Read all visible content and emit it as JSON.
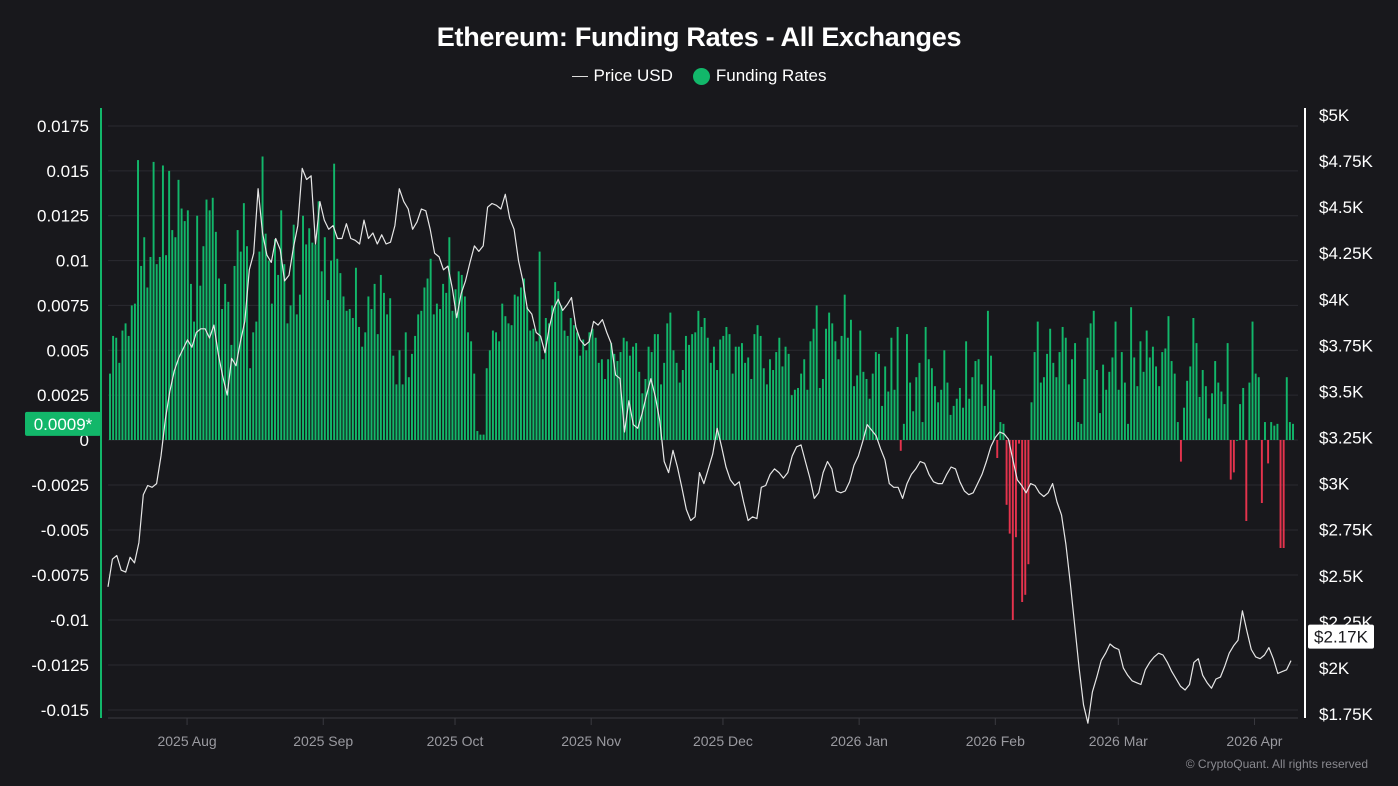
{
  "header": {
    "title": "Ethereum: Funding Rates - All Exchanges"
  },
  "legend": {
    "items": [
      {
        "label": "Price USD",
        "type": "line",
        "color": "#e6e6e6"
      },
      {
        "label": "Funding Rates",
        "type": "dot",
        "color": "#12b76a"
      }
    ]
  },
  "footer": {
    "copyright": "© CryptoQuant. All rights reserved"
  },
  "chart_data": {
    "type": "bar+line",
    "title": "Ethereum: Funding Rates - All Exchanges",
    "colors": {
      "positive": "#12b76a",
      "negative": "#e5334d",
      "price": "#e6e6e6",
      "background": "#18181c",
      "grid": "#2a2a30",
      "left_axis": "#12b76a",
      "right_axis": "#ffffff"
    },
    "left_axis": {
      "ylim": [
        -0.015,
        0.0175
      ],
      "ticks": [
        0.0175,
        0.015,
        0.0125,
        0.01,
        0.0075,
        0.005,
        0.0025,
        0,
        -0.0025,
        -0.005,
        -0.0075,
        -0.01,
        -0.0125,
        -0.015
      ],
      "tick_labels": [
        "0.0175",
        "0.015",
        "0.0125",
        "0.01",
        "0.0075",
        "0.005",
        "0.0025",
        "0",
        "-0.0025",
        "-0.005",
        "-0.0075",
        "-0.01",
        "-0.0125",
        "-0.015"
      ],
      "current_value": 0.0009,
      "current_label": "0.0009*"
    },
    "right_axis": {
      "ylim": [
        1750,
        5000
      ],
      "ticks": [
        5000,
        4750,
        4500,
        4250,
        4000,
        3750,
        3500,
        3250,
        3000,
        2750,
        2500,
        2250,
        2000,
        1750
      ],
      "tick_labels": [
        "$5K",
        "$4.75K",
        "$4.5K",
        "$4.25K",
        "$4K",
        "$3.75K",
        "$3.5K",
        "$3.25K",
        "$3K",
        "$2.75K",
        "$2.5K",
        "$2.25K",
        "$2K",
        "$1.75K"
      ],
      "current_value": 2170,
      "current_label": "$2.17K"
    },
    "x_axis": {
      "tick_labels": [
        "2025 Aug",
        "2025 Sep",
        "2025 Oct",
        "2025 Nov",
        "2025 Dec",
        "2026 Jan",
        "2026 Feb",
        "2026 Mar",
        "2026 Apr"
      ],
      "tick_positions_days": [
        18,
        49,
        79,
        110,
        140,
        171,
        202,
        230,
        261
      ],
      "total_days": 270
    },
    "grid": true,
    "legend_position": "top-center",
    "series": [
      {
        "name": "Funding Rates",
        "values": [
          0.0037,
          0.0058,
          0.0057,
          0.0043,
          0.0061,
          0.0065,
          0.0058,
          0.0075,
          0.0076,
          0.0156,
          0.0097,
          0.0113,
          0.0085,
          0.0102,
          0.0155,
          0.0098,
          0.0102,
          0.0153,
          0.0103,
          0.015,
          0.0117,
          0.0113,
          0.0145,
          0.0129,
          0.0122,
          0.0128,
          0.0087,
          0.0066,
          0.0125,
          0.0086,
          0.0108,
          0.0134,
          0.0128,
          0.0135,
          0.0116,
          0.009,
          0.0073,
          0.0087,
          0.0077,
          0.0053,
          0.0097,
          0.0117,
          0.0105,
          0.0132,
          0.0108,
          0.004,
          0.006,
          0.0066,
          0.0105,
          0.0158,
          0.0115,
          0.01,
          0.0076,
          0.0112,
          0.0092,
          0.0128,
          0.0098,
          0.0065,
          0.0075,
          0.012,
          0.007,
          0.0081,
          0.0125,
          0.0109,
          0.0118,
          0.011,
          0.0109,
          0.0133,
          0.0094,
          0.0113,
          0.0078,
          0.01,
          0.0154,
          0.0101,
          0.0093,
          0.008,
          0.0072,
          0.0073,
          0.0068,
          0.0096,
          0.0063,
          0.0052,
          0.006,
          0.008,
          0.0073,
          0.0087,
          0.0059,
          0.0092,
          0.0082,
          0.007,
          0.0079,
          0.0047,
          0.0031,
          0.005,
          0.0031,
          0.006,
          0.0035,
          0.0048,
          0.0058,
          0.007,
          0.0072,
          0.0085,
          0.009,
          0.0101,
          0.007,
          0.0076,
          0.0073,
          0.0087,
          0.0082,
          0.0113,
          0.0072,
          0.0084,
          0.0094,
          0.0092,
          0.008,
          0.006,
          0.0055,
          0.0037,
          0.0005,
          0.0003,
          0.0003,
          0.004,
          0.005,
          0.0061,
          0.006,
          0.0055,
          0.0076,
          0.0069,
          0.0065,
          0.0064,
          0.0081,
          0.008,
          0.0085,
          0.009,
          0.0074,
          0.0061,
          0.0062,
          0.0055,
          0.0105,
          0.0045,
          0.0068,
          0.0065,
          0.0075,
          0.0088,
          0.0083,
          0.0075,
          0.0061,
          0.0058,
          0.0068,
          0.0064,
          0.006,
          0.0047,
          0.0056,
          0.005,
          0.006,
          0.0062,
          0.0057,
          0.0043,
          0.0045,
          0.0034,
          0.0045,
          0.0054,
          0.0048,
          0.0044,
          0.0049,
          0.0057,
          0.0055,
          0.0047,
          0.0052,
          0.0054,
          0.0038,
          0.0026,
          0.0034,
          0.0052,
          0.0049,
          0.0059,
          0.0059,
          0.0031,
          0.0043,
          0.0065,
          0.0071,
          0.005,
          0.0043,
          0.0032,
          0.0039,
          0.0058,
          0.0053,
          0.0059,
          0.006,
          0.0072,
          0.0063,
          0.0068,
          0.0057,
          0.0043,
          0.0052,
          0.0039,
          0.0056,
          0.0058,
          0.0063,
          0.0059,
          0.0037,
          0.0052,
          0.0052,
          0.0054,
          0.0043,
          0.0046,
          0.0034,
          0.0059,
          0.0064,
          0.0058,
          0.004,
          0.0031,
          0.0045,
          0.0039,
          0.0049,
          0.0057,
          0.0041,
          0.0052,
          0.0048,
          0.0025,
          0.0028,
          0.0029,
          0.0037,
          0.0045,
          0.0028,
          0.0055,
          0.0062,
          0.0075,
          0.0029,
          0.0034,
          0.0062,
          0.0071,
          0.0065,
          0.0055,
          0.0045,
          0.0058,
          0.0081,
          0.0057,
          0.0067,
          0.003,
          0.0036,
          0.0061,
          0.0038,
          0.0034,
          0.0023,
          0.0037,
          0.0049,
          0.0048,
          0.0019,
          0.0041,
          0.0027,
          0.0057,
          0.0028,
          0.0063,
          -0.0006,
          0.0009,
          0.0059,
          0.0032,
          0.0016,
          0.0035,
          0.0043,
          0.001,
          0.0063,
          0.0045,
          0.004,
          0.003,
          0.0021,
          0.0028,
          0.005,
          0.0032,
          0.0014,
          0.0019,
          0.0023,
          0.0029,
          0.0018,
          0.0055,
          0.0023,
          0.0035,
          0.0044,
          0.0045,
          0.0031,
          0.0019,
          0.0072,
          0.0047,
          0.0028,
          -0.001,
          0.001,
          0.0009,
          -0.0036,
          -0.0052,
          -0.01,
          -0.0054,
          -0.0002,
          -0.009,
          -0.0086,
          -0.0069,
          0.0021,
          0.0049,
          0.0066,
          0.0032,
          0.0035,
          0.0048,
          0.0062,
          0.0043,
          0.0035,
          0.0049,
          0.0063,
          0.0057,
          0.0031,
          0.0045,
          0.0054,
          0.001,
          0.0009,
          0.0034,
          0.0057,
          0.0065,
          0.0072,
          0.0039,
          0.0015,
          0.0042,
          0.0028,
          0.0038,
          0.0046,
          0.0066,
          0.0028,
          0.0049,
          0.0032,
          0.0009,
          0.0074,
          0.0046,
          0.003,
          0.0055,
          0.0038,
          0.0061,
          0.0046,
          0.0052,
          0.0041,
          0.003,
          0.0049,
          0.0051,
          0.0069,
          0.0044,
          0.0037,
          0.001,
          -0.0012,
          0.0018,
          0.0033,
          0.0041,
          0.0068,
          0.0054,
          0.0024,
          0.0039,
          0.003,
          0.0012,
          0.0026,
          0.0044,
          0.0032,
          0.0027,
          0.002,
          0.0054,
          -0.0022,
          -0.0018,
          0.0,
          0.002,
          0.0029,
          -0.0045,
          0.0032,
          0.0066,
          0.0037,
          0.0035,
          -0.0035,
          0.001,
          -0.0013,
          0.001,
          0.0008,
          0.0009,
          -0.006,
          -0.006,
          0.0035,
          0.001,
          0.0009
        ],
        "approximate": true
      },
      {
        "name": "Price USD",
        "points_days": [
          0,
          1,
          2,
          3,
          4,
          5,
          6,
          7,
          8,
          9,
          10,
          11,
          12,
          13,
          14,
          15,
          16,
          17,
          18,
          19,
          20,
          21,
          22,
          23,
          24,
          25,
          26,
          27,
          28,
          29,
          30,
          31,
          32,
          33,
          34,
          35,
          36,
          37,
          38,
          39,
          40,
          41,
          42,
          43,
          44,
          45,
          46,
          47,
          48,
          49,
          50,
          51,
          52,
          53,
          54,
          55,
          56,
          57,
          58,
          59,
          60,
          61,
          62,
          63,
          64,
          65,
          66,
          67,
          68,
          69,
          70,
          71,
          72,
          73,
          74,
          75,
          76,
          77,
          78,
          79,
          80,
          81,
          82,
          83,
          84,
          85,
          86,
          87,
          88,
          89,
          90,
          91,
          92,
          93,
          94,
          95,
          96,
          97,
          98,
          99,
          100,
          101,
          102,
          103,
          104,
          105,
          106,
          107,
          108,
          109,
          110,
          111,
          112,
          113,
          114,
          115,
          116,
          117,
          118,
          119,
          120,
          121,
          122,
          123,
          124,
          125,
          126,
          127,
          128,
          129,
          130,
          131,
          132,
          133,
          134,
          135,
          136,
          137,
          138,
          139,
          140,
          141,
          142,
          143,
          144,
          145,
          146,
          147,
          148,
          149,
          150,
          151,
          152,
          153,
          154,
          155,
          156,
          157,
          158,
          159,
          160,
          161,
          162,
          163,
          164,
          165,
          166,
          167,
          168,
          169,
          170,
          171,
          172,
          173,
          174,
          175,
          176,
          177,
          178,
          179,
          180,
          181,
          182,
          183,
          184,
          185,
          186,
          187,
          188,
          189,
          190,
          191,
          192,
          193,
          194,
          195,
          196,
          197,
          198,
          199,
          200,
          201,
          202,
          203,
          204,
          205,
          206,
          207,
          208,
          209,
          210,
          211,
          212,
          213,
          214,
          215,
          216,
          217,
          218,
          219,
          220,
          221,
          222,
          223,
          224,
          225,
          226,
          227,
          228,
          229,
          230,
          231,
          232,
          233,
          234,
          235,
          236,
          237,
          238,
          239,
          240,
          241,
          242,
          243,
          244,
          245,
          246,
          247,
          248,
          249,
          250,
          251,
          252,
          253,
          254,
          255,
          256,
          257,
          258,
          259,
          260,
          261,
          262,
          263,
          264,
          265,
          266,
          267,
          268
        ],
        "values": [
          2440,
          2590,
          2610,
          2530,
          2520,
          2600,
          2570,
          2680,
          2940,
          2990,
          2980,
          3000,
          3150,
          3350,
          3500,
          3610,
          3680,
          3730,
          3780,
          3740,
          3820,
          3840,
          3840,
          3790,
          3860,
          3700,
          3580,
          3480,
          3680,
          3640,
          3770,
          3880,
          4160,
          4250,
          4600,
          4360,
          4240,
          4200,
          4330,
          4270,
          4100,
          4130,
          4280,
          4400,
          4710,
          4650,
          4670,
          4300,
          4530,
          4430,
          4380,
          4400,
          4330,
          4330,
          4410,
          4330,
          4320,
          4300,
          4430,
          4330,
          4360,
          4300,
          4350,
          4300,
          4310,
          4400,
          4600,
          4530,
          4490,
          4380,
          4420,
          4490,
          4480,
          4380,
          4250,
          4230,
          4160,
          4180,
          4060,
          3900,
          4030,
          4100,
          4200,
          4290,
          4260,
          4290,
          4500,
          4520,
          4510,
          4490,
          4570,
          4440,
          4380,
          4210,
          4100,
          3950,
          3920,
          3820,
          3800,
          3710,
          3850,
          3950,
          4000,
          3940,
          3970,
          4010,
          3850,
          3780,
          3750,
          3770,
          3880,
          3860,
          3890,
          3820,
          3760,
          3590,
          3570,
          3280,
          3450,
          3320,
          3300,
          3380,
          3480,
          3570,
          3470,
          3340,
          3120,
          3060,
          3180,
          3090,
          2980,
          2860,
          2800,
          2820,
          3060,
          3000,
          3080,
          3160,
          3300,
          3200,
          3090,
          3020,
          2990,
          3010,
          2900,
          2800,
          2820,
          2810,
          2980,
          2990,
          3050,
          3080,
          3060,
          3030,
          3060,
          3150,
          3200,
          3210,
          3120,
          3030,
          2920,
          2950,
          3060,
          3120,
          3080,
          2960,
          2950,
          2960,
          3010,
          3100,
          3150,
          3230,
          3320,
          3290,
          3260,
          3190,
          3130,
          3000,
          2980,
          2980,
          2920,
          3000,
          3050,
          3080,
          3120,
          3110,
          3050,
          3010,
          3000,
          3000,
          3050,
          3090,
          3080,
          3010,
          2960,
          2940,
          2950,
          3000,
          3050,
          3120,
          3200,
          3250,
          3280,
          3270,
          3240,
          3130,
          3020,
          2990,
          2950,
          3000,
          2990,
          2950,
          2930,
          2950,
          3000,
          2900,
          2830,
          2670,
          2460,
          2230,
          2000,
          1800,
          1700,
          1870,
          1950,
          2040,
          2080,
          2130,
          2110,
          2100,
          2000,
          1960,
          1930,
          1920,
          1910,
          1990,
          2030,
          2060,
          2080,
          2070,
          2030,
          1980,
          1940,
          1900,
          1880,
          1910,
          2030,
          2050,
          1960,
          1920,
          1890,
          1940,
          1950,
          2010,
          2080,
          2120,
          2150,
          2310,
          2200,
          2100,
          2060,
          2050,
          2070,
          2110,
          2050,
          1970,
          1980,
          1990,
          2040,
          2110,
          2080,
          2050,
          2120,
          2210,
          2170
        ],
        "approximate": true
      }
    ]
  }
}
